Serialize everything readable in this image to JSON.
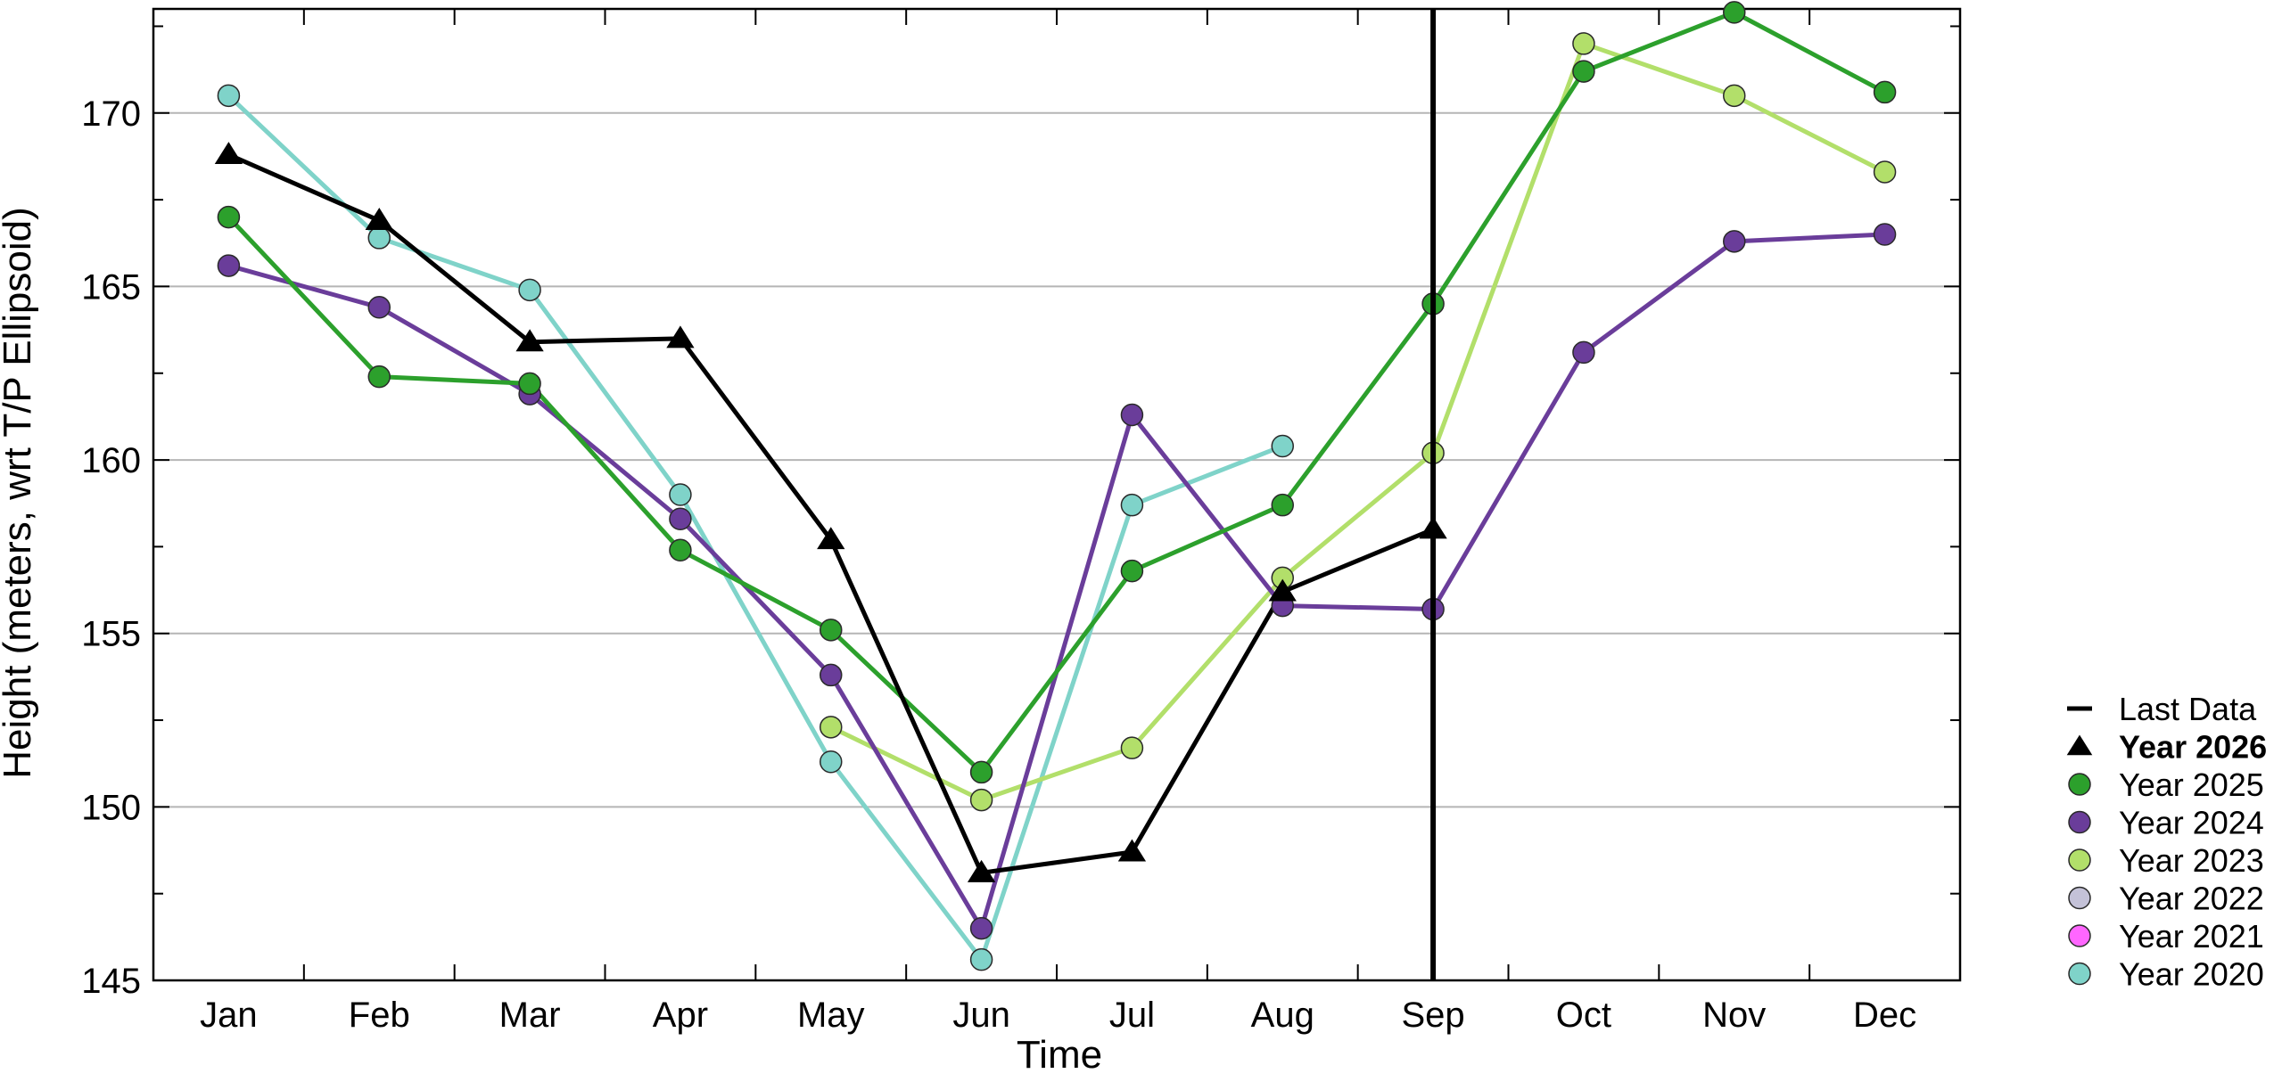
{
  "chart_data": {
    "type": "line",
    "xlabel": "Time",
    "ylabel": "Height (meters, wrt T/P Ellipsoid)",
    "categories": [
      "Jan",
      "Feb",
      "Mar",
      "Apr",
      "May",
      "Jun",
      "Jul",
      "Aug",
      "Sep",
      "Oct",
      "Nov",
      "Dec"
    ],
    "ylim": [
      145,
      173
    ],
    "yticks": [
      145,
      150,
      155,
      160,
      165,
      170
    ],
    "grid": true,
    "legend_position": "right",
    "last_data_month": "Sep",
    "last_data_label": "Last Data",
    "series": [
      {
        "name": "Year 2026",
        "marker": "triangle",
        "color": "#000000",
        "bold": true,
        "values": [
          168.8,
          166.9,
          163.4,
          163.5,
          157.7,
          148.1,
          148.7,
          156.2,
          158.0,
          null,
          null,
          null
        ]
      },
      {
        "name": "Year 2025",
        "marker": "circle",
        "color": "#2ca02c",
        "bold": false,
        "values": [
          167.0,
          162.4,
          162.2,
          157.4,
          155.1,
          151.0,
          156.8,
          158.7,
          164.5,
          171.2,
          172.9,
          170.6
        ]
      },
      {
        "name": "Year 2024",
        "marker": "circle",
        "color": "#6a3d9a",
        "bold": false,
        "values": [
          165.6,
          164.4,
          161.9,
          158.3,
          153.8,
          146.5,
          161.3,
          155.8,
          155.7,
          163.1,
          166.3,
          166.5
        ]
      },
      {
        "name": "Year 2023",
        "marker": "circle",
        "color": "#b2df6a",
        "bold": false,
        "values": [
          null,
          null,
          null,
          null,
          152.3,
          150.2,
          151.7,
          156.6,
          160.2,
          172.0,
          170.5,
          168.3
        ]
      },
      {
        "name": "Year 2022",
        "marker": "circle",
        "color": "#c4c2d8",
        "bold": false,
        "values": [
          null,
          null,
          null,
          null,
          null,
          null,
          null,
          null,
          null,
          null,
          null,
          null
        ]
      },
      {
        "name": "Year 2021",
        "marker": "circle",
        "color": "#ff66ff",
        "bold": false,
        "values": [
          null,
          null,
          null,
          null,
          null,
          null,
          null,
          null,
          null,
          null,
          null,
          null
        ]
      },
      {
        "name": "Year 2020",
        "marker": "circle",
        "color": "#7fd3c9",
        "bold": false,
        "values": [
          170.5,
          166.4,
          164.9,
          159.0,
          151.3,
          145.6,
          158.7,
          160.4,
          null,
          null,
          null,
          null
        ]
      }
    ]
  }
}
